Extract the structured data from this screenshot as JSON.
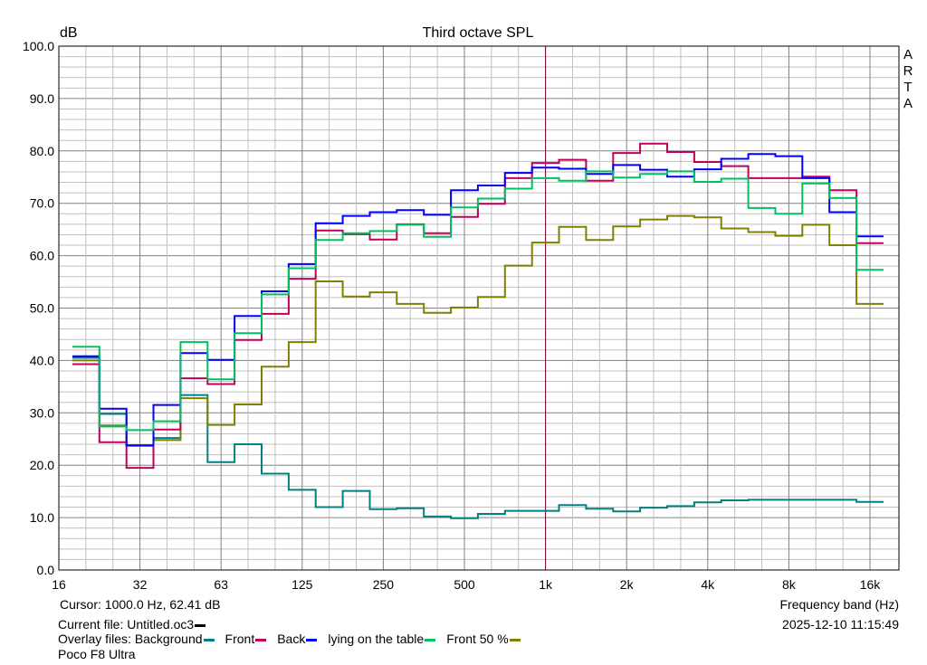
{
  "chart_data": {
    "type": "line",
    "step": true,
    "title": "Third octave SPL",
    "ylabel": "dB",
    "xlabel": "Frequency band (Hz)",
    "xscale": "log",
    "ylim": [
      0,
      100
    ],
    "xlim_labels": [
      "16",
      "16k"
    ],
    "yticks": [
      "0.0",
      "10.0",
      "20.0",
      "30.0",
      "40.0",
      "50.0",
      "60.0",
      "70.0",
      "80.0",
      "90.0",
      "100.0"
    ],
    "xticks": [
      {
        "f": 16,
        "label": "16"
      },
      {
        "f": 32,
        "label": "32"
      },
      {
        "f": 63,
        "label": "63"
      },
      {
        "f": 125,
        "label": "125"
      },
      {
        "f": 250,
        "label": "250"
      },
      {
        "f": 500,
        "label": "500"
      },
      {
        "f": 1000,
        "label": "1k"
      },
      {
        "f": 2000,
        "label": "2k"
      },
      {
        "f": 4000,
        "label": "4k"
      },
      {
        "f": 8000,
        "label": "8k"
      },
      {
        "f": 16000,
        "label": "16k"
      }
    ],
    "grid": true,
    "cursor_hz": 1000,
    "bands_hz": [
      20,
      25,
      31.5,
      40,
      50,
      63,
      80,
      100,
      125,
      160,
      200,
      250,
      315,
      400,
      500,
      630,
      800,
      1000,
      1250,
      1600,
      2000,
      2500,
      3150,
      4000,
      5000,
      6300,
      8000,
      10000,
      12500,
      16000
    ],
    "series": [
      {
        "name": "Background",
        "color": "#008080",
        "values": [
          40.5,
          29.8,
          23.8,
          25.2,
          33.4,
          20.6,
          24.0,
          18.4,
          15.3,
          12.0,
          15.1,
          11.6,
          11.8,
          10.2,
          9.9,
          10.7,
          11.3,
          11.3,
          12.4,
          11.7,
          11.2,
          11.9,
          12.2,
          12.9,
          13.3,
          13.4,
          13.4,
          13.4,
          13.4,
          13.0
        ]
      },
      {
        "name": "Front",
        "color": "#C0005A",
        "values": [
          39.3,
          24.4,
          19.5,
          26.8,
          36.6,
          35.5,
          43.9,
          48.9,
          55.6,
          64.8,
          64.1,
          63.1,
          66.0,
          64.3,
          67.4,
          69.9,
          74.8,
          77.7,
          78.3,
          74.3,
          79.6,
          81.4,
          79.8,
          77.9,
          77.1,
          74.8,
          74.8,
          75.1,
          72.5,
          62.4
        ]
      },
      {
        "name": "Back",
        "color": "#0000FF",
        "values": [
          40.8,
          30.8,
          23.8,
          31.5,
          41.4,
          40.1,
          48.5,
          53.2,
          58.4,
          66.2,
          67.6,
          68.3,
          68.7,
          67.8,
          72.5,
          73.4,
          75.8,
          76.8,
          76.6,
          75.6,
          77.3,
          76.4,
          75.1,
          76.5,
          78.5,
          79.4,
          79.0,
          74.8,
          68.3,
          63.7
        ]
      },
      {
        "name": "lying on the table",
        "color": "#00C060",
        "values": [
          42.6,
          27.4,
          26.7,
          28.4,
          43.5,
          36.4,
          45.2,
          52.6,
          57.6,
          63.0,
          64.3,
          64.7,
          65.9,
          63.6,
          69.2,
          70.9,
          72.8,
          74.8,
          74.3,
          76.1,
          74.9,
          75.6,
          76.1,
          74.1,
          74.7,
          69.1,
          68.0,
          73.8,
          71.0,
          57.3
        ]
      },
      {
        "name": "Front 50 %",
        "color": "#808000",
        "values": [
          40.0,
          27.6,
          23.7,
          24.8,
          32.8,
          27.7,
          31.6,
          38.8,
          43.5,
          55.1,
          52.2,
          53.0,
          50.8,
          49.1,
          50.1,
          52.1,
          58.1,
          62.5,
          65.5,
          63.0,
          65.6,
          66.9,
          67.6,
          67.3,
          65.2,
          64.5,
          63.8,
          65.9,
          62.0,
          50.8
        ]
      }
    ]
  },
  "watermark": [
    "A",
    "R",
    "T",
    "A"
  ],
  "cursor_text": "Cursor:  1000.0 Hz, 62.41 dB",
  "current_file": "Current file: Untitled.oc3",
  "current_file_color": "#000000",
  "overlay_label": "Overlay files: ",
  "device": "Poco F8 Ultra",
  "timestamp": "2025-12-10  11:15:49",
  "cursor_color": "#800040"
}
